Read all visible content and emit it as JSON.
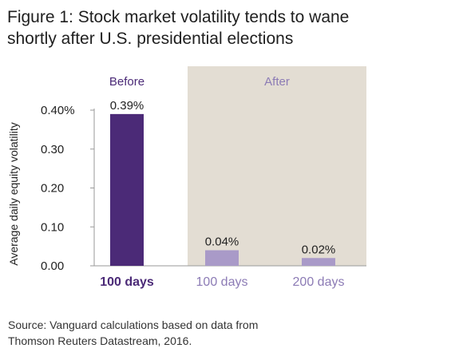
{
  "figure": {
    "title_lines": [
      "Figure 1: Stock market volatility tends to wane",
      "shortly after U.S. presidential elections"
    ],
    "source_lines": [
      "Source: Vanguard calculations based on data from",
      "Thomson Reuters Datastream, 2016."
    ]
  },
  "chart_data": {
    "type": "bar",
    "title": "Figure 1: Stock market volatility tends to wane shortly after U.S. presidential elections",
    "ylabel": "Average daily equity volatility",
    "xlabel": "",
    "ylim": [
      0,
      0.45
    ],
    "yticks": [
      {
        "value": 0.4,
        "label": "0.40%"
      },
      {
        "value": 0.3,
        "label": "0.30"
      },
      {
        "value": 0.2,
        "label": "0.20"
      },
      {
        "value": 0.1,
        "label": "0.10"
      },
      {
        "value": 0.0,
        "label": "0.00"
      }
    ],
    "categories": [
      "100 days",
      "100 days",
      "200 days"
    ],
    "values": [
      0.39,
      0.04,
      0.02
    ],
    "data_labels": [
      "0.39%",
      "0.04%",
      "0.02%"
    ],
    "groups": [
      {
        "label": "Before",
        "categories": [
          0
        ]
      },
      {
        "label": "After",
        "categories": [
          1,
          2
        ],
        "shaded": true
      }
    ],
    "grid": false,
    "legend": "none",
    "colors": {
      "before_bar": "#4b2a77",
      "after_bar": "#a99ac8",
      "before_text": "#4b2a77",
      "after_text": "#8c7bb5",
      "after_band": "#e3ddd3",
      "axis": "#9a9a9a"
    }
  }
}
